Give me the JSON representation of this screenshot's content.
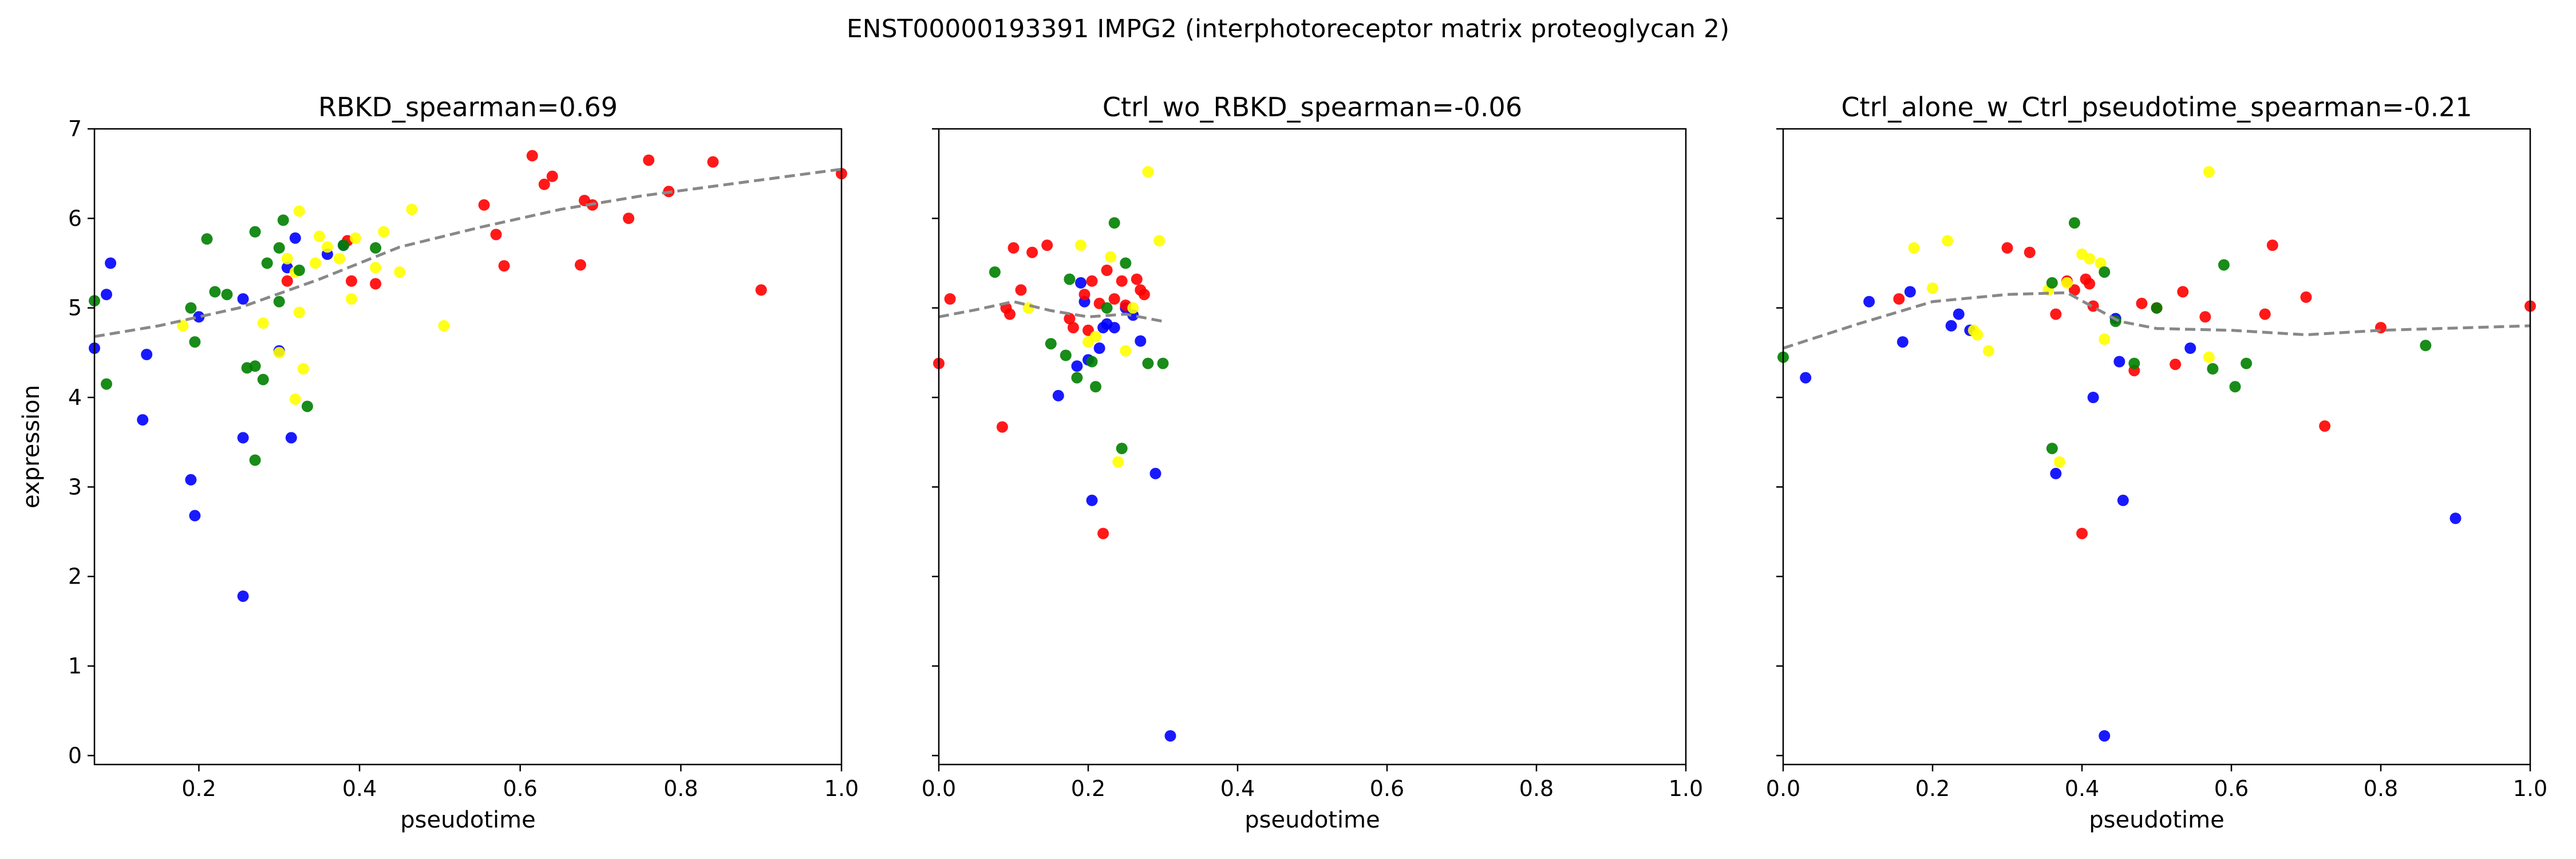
{
  "figure": {
    "suptitle": "ENST00000193391  IMPG2  (interphotoreceptor matrix proteoglycan 2)"
  },
  "chart_data": [
    {
      "type": "scatter",
      "title": "RBKD_spearman=0.69",
      "xlabel": "pseudotime",
      "ylabel": "expression",
      "xlim": [
        0.07,
        1.0
      ],
      "ylim": [
        -0.1,
        7.0
      ],
      "xticks": [
        "0.2",
        "0.4",
        "0.6",
        "0.8",
        "1.0"
      ],
      "yticks": [
        "0",
        "1",
        "2",
        "3",
        "4",
        "5",
        "6",
        "7"
      ],
      "grid": false,
      "series": [
        {
          "color": "#0000ff",
          "points": [
            [
              0.07,
              4.55
            ],
            [
              0.085,
              5.15
            ],
            [
              0.09,
              5.5
            ],
            [
              0.135,
              4.48
            ],
            [
              0.13,
              3.75
            ],
            [
              0.19,
              3.08
            ],
            [
              0.195,
              2.68
            ],
            [
              0.2,
              4.9
            ],
            [
              0.255,
              5.1
            ],
            [
              0.255,
              3.55
            ],
            [
              0.255,
              1.78
            ],
            [
              0.3,
              4.52
            ],
            [
              0.315,
              3.55
            ],
            [
              0.32,
              5.78
            ],
            [
              0.31,
              5.45
            ],
            [
              0.36,
              5.6
            ],
            [
              0.38,
              5.7
            ]
          ]
        },
        {
          "color": "#ff0000",
          "points": [
            [
              0.31,
              5.3
            ],
            [
              0.385,
              5.75
            ],
            [
              0.39,
              5.3
            ],
            [
              0.42,
              5.27
            ],
            [
              0.555,
              6.15
            ],
            [
              0.57,
              5.82
            ],
            [
              0.58,
              5.47
            ],
            [
              0.615,
              6.7
            ],
            [
              0.63,
              6.38
            ],
            [
              0.64,
              6.47
            ],
            [
              0.675,
              5.48
            ],
            [
              0.68,
              6.2
            ],
            [
              0.69,
              6.15
            ],
            [
              0.735,
              6.0
            ],
            [
              0.76,
              6.65
            ],
            [
              0.785,
              6.3
            ],
            [
              0.84,
              6.63
            ],
            [
              0.9,
              5.2
            ],
            [
              1.0,
              6.5
            ]
          ]
        },
        {
          "color": "#ffff00",
          "points": [
            [
              0.18,
              4.8
            ],
            [
              0.28,
              4.83
            ],
            [
              0.3,
              4.5
            ],
            [
              0.31,
              5.55
            ],
            [
              0.32,
              5.4
            ],
            [
              0.32,
              3.98
            ],
            [
              0.325,
              4.95
            ],
            [
              0.325,
              6.08
            ],
            [
              0.33,
              4.32
            ],
            [
              0.345,
              5.5
            ],
            [
              0.35,
              5.8
            ],
            [
              0.36,
              5.68
            ],
            [
              0.375,
              5.55
            ],
            [
              0.39,
              5.1
            ],
            [
              0.395,
              5.78
            ],
            [
              0.42,
              5.45
            ],
            [
              0.43,
              5.85
            ],
            [
              0.45,
              5.4
            ],
            [
              0.465,
              6.1
            ],
            [
              0.505,
              4.8
            ]
          ]
        },
        {
          "color": "#008000",
          "points": [
            [
              0.07,
              5.08
            ],
            [
              0.085,
              4.15
            ],
            [
              0.19,
              5.0
            ],
            [
              0.195,
              4.62
            ],
            [
              0.21,
              5.77
            ],
            [
              0.22,
              5.18
            ],
            [
              0.235,
              5.15
            ],
            [
              0.26,
              4.33
            ],
            [
              0.27,
              5.85
            ],
            [
              0.27,
              4.35
            ],
            [
              0.27,
              3.3
            ],
            [
              0.28,
              4.2
            ],
            [
              0.285,
              5.5
            ],
            [
              0.3,
              5.07
            ],
            [
              0.3,
              5.67
            ],
            [
              0.305,
              5.98
            ],
            [
              0.325,
              5.42
            ],
            [
              0.335,
              3.9
            ],
            [
              0.38,
              5.7
            ],
            [
              0.42,
              5.67
            ]
          ]
        }
      ],
      "trend": [
        [
          0.07,
          4.68
        ],
        [
          0.15,
          4.8
        ],
        [
          0.25,
          5.0
        ],
        [
          0.35,
          5.32
        ],
        [
          0.45,
          5.68
        ],
        [
          0.55,
          5.9
        ],
        [
          0.65,
          6.1
        ],
        [
          0.75,
          6.25
        ],
        [
          0.85,
          6.37
        ],
        [
          1.0,
          6.55
        ]
      ]
    },
    {
      "type": "scatter",
      "title": "Ctrl_wo_RBKD_spearman=-0.06",
      "xlabel": "pseudotime",
      "ylabel": "",
      "xlim": [
        0.0,
        1.0
      ],
      "ylim": [
        -0.1,
        7.0
      ],
      "xticks": [
        "0.0",
        "0.2",
        "0.4",
        "0.6",
        "0.8",
        "1.0"
      ],
      "yticks": [],
      "grid": false,
      "series": [
        {
          "color": "#0000ff",
          "points": [
            [
              0.16,
              4.02
            ],
            [
              0.185,
              4.35
            ],
            [
              0.19,
              5.28
            ],
            [
              0.195,
              5.07
            ],
            [
              0.2,
              4.42
            ],
            [
              0.205,
              2.85
            ],
            [
              0.215,
              4.55
            ],
            [
              0.22,
              4.78
            ],
            [
              0.225,
              4.82
            ],
            [
              0.235,
              4.78
            ],
            [
              0.25,
              5.0
            ],
            [
              0.26,
              4.92
            ],
            [
              0.27,
              4.63
            ],
            [
              0.29,
              3.15
            ],
            [
              0.31,
              0.22
            ]
          ]
        },
        {
          "color": "#ff0000",
          "points": [
            [
              0.0,
              4.38
            ],
            [
              0.015,
              5.1
            ],
            [
              0.085,
              3.67
            ],
            [
              0.09,
              5.0
            ],
            [
              0.095,
              4.93
            ],
            [
              0.1,
              5.67
            ],
            [
              0.11,
              5.2
            ],
            [
              0.125,
              5.62
            ],
            [
              0.145,
              5.7
            ],
            [
              0.175,
              4.88
            ],
            [
              0.18,
              4.78
            ],
            [
              0.195,
              5.15
            ],
            [
              0.2,
              4.75
            ],
            [
              0.205,
              5.3
            ],
            [
              0.215,
              5.05
            ],
            [
              0.22,
              2.48
            ],
            [
              0.225,
              5.42
            ],
            [
              0.235,
              5.1
            ],
            [
              0.245,
              5.3
            ],
            [
              0.25,
              5.03
            ],
            [
              0.265,
              5.32
            ],
            [
              0.27,
              5.2
            ],
            [
              0.275,
              5.15
            ]
          ]
        },
        {
          "color": "#ffff00",
          "points": [
            [
              0.12,
              5.0
            ],
            [
              0.19,
              5.7
            ],
            [
              0.2,
              4.62
            ],
            [
              0.21,
              4.68
            ],
            [
              0.23,
              5.57
            ],
            [
              0.24,
              3.28
            ],
            [
              0.25,
              4.52
            ],
            [
              0.26,
              5.0
            ],
            [
              0.28,
              6.52
            ],
            [
              0.295,
              5.75
            ]
          ]
        },
        {
          "color": "#008000",
          "points": [
            [
              0.075,
              5.4
            ],
            [
              0.15,
              4.6
            ],
            [
              0.17,
              4.47
            ],
            [
              0.175,
              5.32
            ],
            [
              0.185,
              4.22
            ],
            [
              0.205,
              4.4
            ],
            [
              0.21,
              4.12
            ],
            [
              0.225,
              5.0
            ],
            [
              0.235,
              5.95
            ],
            [
              0.245,
              3.43
            ],
            [
              0.25,
              5.5
            ],
            [
              0.28,
              4.38
            ],
            [
              0.3,
              4.38
            ]
          ]
        }
      ],
      "trend": [
        [
          0.0,
          4.9
        ],
        [
          0.05,
          4.98
        ],
        [
          0.1,
          5.07
        ],
        [
          0.15,
          4.97
        ],
        [
          0.2,
          4.9
        ],
        [
          0.25,
          4.93
        ],
        [
          0.3,
          4.85
        ]
      ]
    },
    {
      "type": "scatter",
      "title": "Ctrl_alone_w_Ctrl_pseudotime_spearman=-0.21",
      "xlabel": "pseudotime",
      "ylabel": "",
      "xlim": [
        0.0,
        1.0
      ],
      "ylim": [
        -0.1,
        7.0
      ],
      "xticks": [
        "0.0",
        "0.2",
        "0.4",
        "0.6",
        "0.8",
        "1.0"
      ],
      "yticks": [],
      "grid": false,
      "series": [
        {
          "color": "#0000ff",
          "points": [
            [
              0.03,
              4.22
            ],
            [
              0.115,
              5.07
            ],
            [
              0.16,
              4.62
            ],
            [
              0.17,
              5.18
            ],
            [
              0.225,
              4.8
            ],
            [
              0.235,
              4.93
            ],
            [
              0.25,
              4.75
            ],
            [
              0.365,
              3.15
            ],
            [
              0.415,
              4.0
            ],
            [
              0.43,
              0.22
            ],
            [
              0.445,
              4.88
            ],
            [
              0.45,
              4.4
            ],
            [
              0.455,
              2.85
            ],
            [
              0.545,
              4.55
            ],
            [
              0.9,
              2.65
            ]
          ]
        },
        {
          "color": "#ff0000",
          "points": [
            [
              0.155,
              5.1
            ],
            [
              0.3,
              5.67
            ],
            [
              0.33,
              5.62
            ],
            [
              0.365,
              4.93
            ],
            [
              0.38,
              5.3
            ],
            [
              0.39,
              5.2
            ],
            [
              0.4,
              2.48
            ],
            [
              0.405,
              5.32
            ],
            [
              0.41,
              5.27
            ],
            [
              0.415,
              5.02
            ],
            [
              0.47,
              4.3
            ],
            [
              0.48,
              5.05
            ],
            [
              0.5,
              5.0
            ],
            [
              0.525,
              4.37
            ],
            [
              0.535,
              5.18
            ],
            [
              0.565,
              4.9
            ],
            [
              0.645,
              4.93
            ],
            [
              0.655,
              5.7
            ],
            [
              0.7,
              5.12
            ],
            [
              0.725,
              3.68
            ],
            [
              0.8,
              4.78
            ],
            [
              1.0,
              5.02
            ]
          ]
        },
        {
          "color": "#ffff00",
          "points": [
            [
              0.175,
              5.67
            ],
            [
              0.2,
              5.22
            ],
            [
              0.22,
              5.75
            ],
            [
              0.255,
              4.75
            ],
            [
              0.26,
              4.7
            ],
            [
              0.275,
              4.52
            ],
            [
              0.355,
              5.2
            ],
            [
              0.37,
              3.28
            ],
            [
              0.38,
              5.28
            ],
            [
              0.4,
              5.6
            ],
            [
              0.41,
              5.55
            ],
            [
              0.425,
              5.5
            ],
            [
              0.43,
              4.65
            ],
            [
              0.57,
              6.52
            ],
            [
              0.57,
              4.45
            ]
          ]
        },
        {
          "color": "#008000",
          "points": [
            [
              0.0,
              4.45
            ],
            [
              0.36,
              3.43
            ],
            [
              0.36,
              5.28
            ],
            [
              0.39,
              5.95
            ],
            [
              0.43,
              5.4
            ],
            [
              0.445,
              4.85
            ],
            [
              0.47,
              4.38
            ],
            [
              0.5,
              5.0
            ],
            [
              0.575,
              4.32
            ],
            [
              0.59,
              5.48
            ],
            [
              0.605,
              4.12
            ],
            [
              0.62,
              4.38
            ],
            [
              0.86,
              4.58
            ]
          ]
        }
      ],
      "trend": [
        [
          0.0,
          4.55
        ],
        [
          0.1,
          4.82
        ],
        [
          0.2,
          5.07
        ],
        [
          0.3,
          5.15
        ],
        [
          0.38,
          5.17
        ],
        [
          0.45,
          4.85
        ],
        [
          0.5,
          4.77
        ],
        [
          0.6,
          4.75
        ],
        [
          0.7,
          4.7
        ],
        [
          0.8,
          4.75
        ],
        [
          1.0,
          4.8
        ]
      ]
    }
  ]
}
